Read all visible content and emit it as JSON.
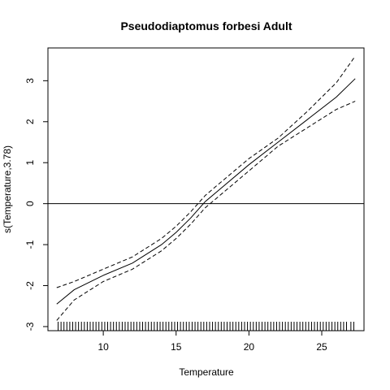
{
  "chart_data": {
    "type": "line",
    "title": "Pseudodiaptomus forbesi Adult",
    "xlabel": "Temperature",
    "ylabel": "s(Temperature,3.78)",
    "xlim": [
      6.2,
      27.9
    ],
    "ylim": [
      -3.1,
      3.8
    ],
    "xticks": [
      10,
      15,
      20,
      25
    ],
    "yticks": [
      -3,
      -2,
      -1,
      0,
      1,
      2,
      3
    ],
    "reference_line_y": 0,
    "grid": false,
    "series": [
      {
        "role": "fit",
        "style": "solid",
        "x": [
          6.8,
          8.0,
          10.0,
          12.0,
          14.0,
          15.0,
          16.0,
          17.0,
          18.0,
          20.0,
          22.0,
          24.0,
          26.0,
          27.3
        ],
        "y": [
          -2.45,
          -2.1,
          -1.75,
          -1.45,
          -1.0,
          -0.7,
          -0.35,
          0.05,
          0.35,
          0.95,
          1.5,
          2.05,
          2.6,
          3.05
        ]
      },
      {
        "role": "upper-ci",
        "style": "dashed",
        "x": [
          6.8,
          8.0,
          10.0,
          12.0,
          14.0,
          15.0,
          16.0,
          17.0,
          18.0,
          20.0,
          22.0,
          24.0,
          26.0,
          27.3
        ],
        "y": [
          -2.05,
          -1.9,
          -1.6,
          -1.3,
          -0.85,
          -0.55,
          -0.2,
          0.2,
          0.5,
          1.1,
          1.6,
          2.25,
          2.95,
          3.6
        ]
      },
      {
        "role": "lower-ci",
        "style": "dashed",
        "x": [
          6.8,
          8.0,
          10.0,
          12.0,
          14.0,
          15.0,
          16.0,
          17.0,
          18.0,
          20.0,
          22.0,
          24.0,
          26.0,
          27.3
        ],
        "y": [
          -2.85,
          -2.35,
          -1.9,
          -1.6,
          -1.15,
          -0.85,
          -0.5,
          -0.1,
          0.2,
          0.8,
          1.4,
          1.85,
          2.3,
          2.5
        ]
      }
    ],
    "rug": [
      6.9,
      7.1,
      7.3,
      7.5,
      7.7,
      7.9,
      8.1,
      8.3,
      8.5,
      8.7,
      8.9,
      9.1,
      9.3,
      9.5,
      9.7,
      9.9,
      10.1,
      10.3,
      10.5,
      10.7,
      10.9,
      11.1,
      11.3,
      11.5,
      11.7,
      11.9,
      12.1,
      12.3,
      12.5,
      12.7,
      12.9,
      13.1,
      13.3,
      13.5,
      13.7,
      13.9,
      14.1,
      14.3,
      14.5,
      14.7,
      14.9,
      15.1,
      15.3,
      15.5,
      15.7,
      15.9,
      16.1,
      16.3,
      16.5,
      16.7,
      16.9,
      17.1,
      17.3,
      17.5,
      17.7,
      17.9,
      18.1,
      18.3,
      18.5,
      18.7,
      18.9,
      19.1,
      19.3,
      19.5,
      19.7,
      19.9,
      20.1,
      20.3,
      20.5,
      20.7,
      20.9,
      21.1,
      21.3,
      21.5,
      21.7,
      21.9,
      22.1,
      22.3,
      22.5,
      22.7,
      22.9,
      23.1,
      23.3,
      23.5,
      23.7,
      23.9,
      24.1,
      24.3,
      24.5,
      24.7,
      24.9,
      25.1,
      25.3,
      25.5,
      25.7,
      25.9,
      26.1,
      26.3,
      26.5,
      26.7,
      27.0,
      27.2
    ]
  }
}
